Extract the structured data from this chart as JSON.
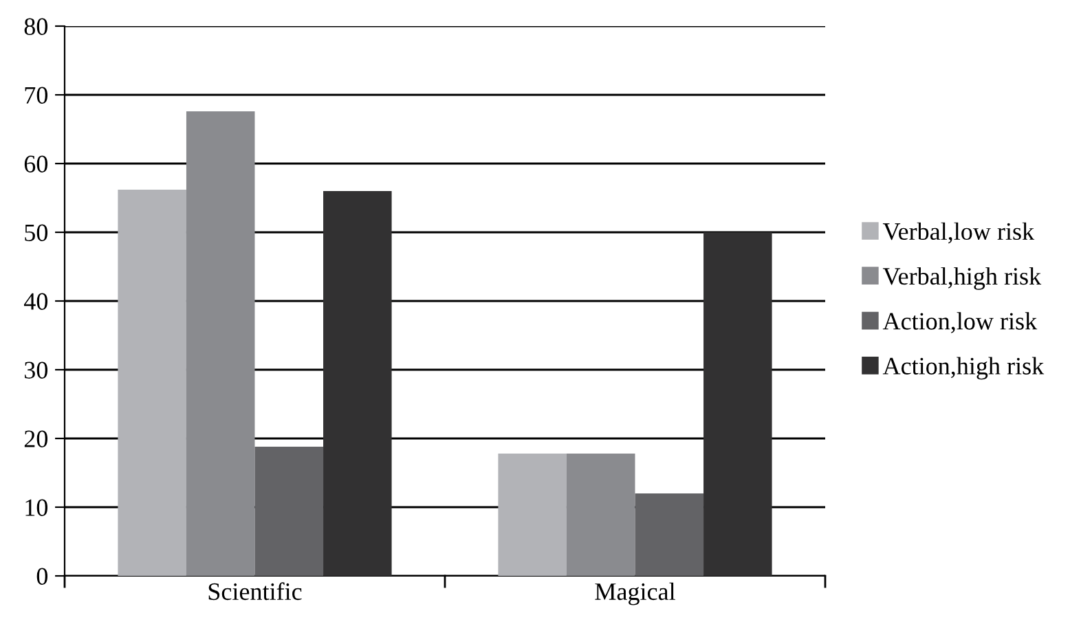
{
  "chart_data": {
    "type": "bar",
    "categories": [
      "Scientific",
      "Magical"
    ],
    "series": [
      {
        "name": "Verbal,low risk",
        "color": "#b2b3b7",
        "values": [
          56.2,
          17.8
        ]
      },
      {
        "name": "Verbal,high risk",
        "color": "#8a8b8f",
        "values": [
          67.6,
          17.8
        ]
      },
      {
        "name": "Action,low risk",
        "color": "#636366",
        "values": [
          18.8,
          12
        ]
      },
      {
        "name": "Action,high risk",
        "color": "#323132",
        "values": [
          56,
          50
        ]
      }
    ],
    "ylim": [
      0,
      80
    ],
    "yticks": [
      0,
      10,
      20,
      30,
      40,
      50,
      60,
      70,
      80
    ],
    "grid": "y",
    "legend": "right"
  }
}
